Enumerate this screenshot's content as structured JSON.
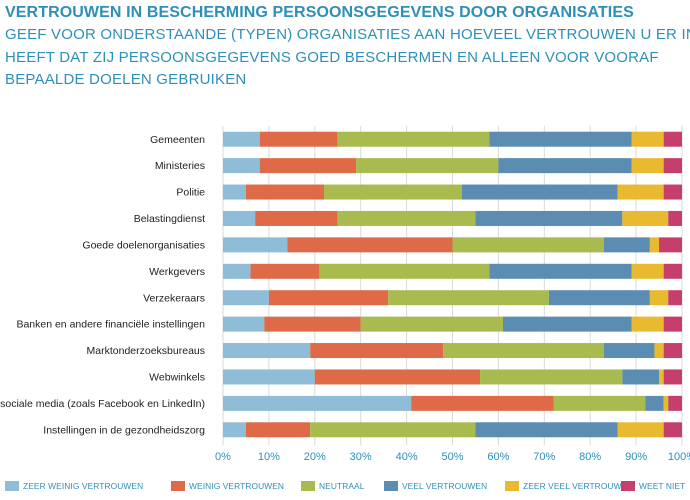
{
  "title": "VERTROUWEN IN BESCHERMING PERSOONSGEGEVENS DOOR ORGANISATIES",
  "subtitle_lines": [
    "GEEF VOOR ONDERSTAANDE (TYPEN) ORGANISATIES AAN HOEVEEL VERTROUWEN U ER IN",
    "HEEFT DAT ZIJ PERSOONSGEGEVENS GOED BESCHERMEN EN ALLEEN VOOR VOORAF",
    "BEPAALDE DOELEN GEBRUIKEN"
  ],
  "chart_data": {
    "type": "bar",
    "orientation": "horizontal",
    "stacked": true,
    "title": "VERTROUWEN IN BESCHERMING PERSOONSGEGEVENS DOOR ORGANISATIES",
    "categories": [
      "Gemeenten",
      "Ministeries",
      "Politie",
      "Belastingdienst",
      "Goede doelenorganisaties",
      "Werkgevers",
      "Verzekeraars",
      "Banken en andere financiële instellingen",
      "Marktonderzoeksbureaus",
      "Webwinkels",
      "sociale media (zoals Facebook en LinkedIn)",
      "Instellingen in de gezondheidszorg"
    ],
    "series": [
      {
        "name": "ZEER WEINIG VERTROUWEN",
        "color": "#8fbcd6",
        "values": [
          8,
          8,
          5,
          7,
          14,
          6,
          10,
          9,
          19,
          20,
          41,
          5
        ]
      },
      {
        "name": "WEINIG VERTROUWEN",
        "color": "#de6a48",
        "values": [
          17,
          21,
          17,
          18,
          36,
          15,
          26,
          21,
          29,
          36,
          31,
          14
        ]
      },
      {
        "name": "NEUTRAAL",
        "color": "#a9bb4f",
        "values": [
          33,
          31,
          30,
          30,
          33,
          37,
          35,
          31,
          35,
          31,
          20,
          36
        ]
      },
      {
        "name": "VEEL VERTROUWEN",
        "color": "#5b8db3",
        "values": [
          31,
          29,
          34,
          32,
          10,
          31,
          22,
          28,
          11,
          8,
          4,
          31
        ]
      },
      {
        "name": "ZEER VEEL VERTROUWEN",
        "color": "#e9b930",
        "values": [
          7,
          7,
          10,
          10,
          2,
          7,
          4,
          7,
          2,
          1,
          1,
          10
        ]
      },
      {
        "name": "WEET NIET",
        "color": "#c63e6a",
        "values": [
          4,
          4,
          4,
          3,
          5,
          4,
          3,
          4,
          4,
          4,
          3,
          4
        ]
      }
    ],
    "xticks": [
      "0%",
      "10%",
      "20%",
      "30%",
      "40%",
      "50%",
      "60%",
      "70%",
      "80%",
      "90%",
      "100%"
    ],
    "xlim": [
      0,
      100
    ],
    "grid": true,
    "legend_position": "bottom"
  }
}
